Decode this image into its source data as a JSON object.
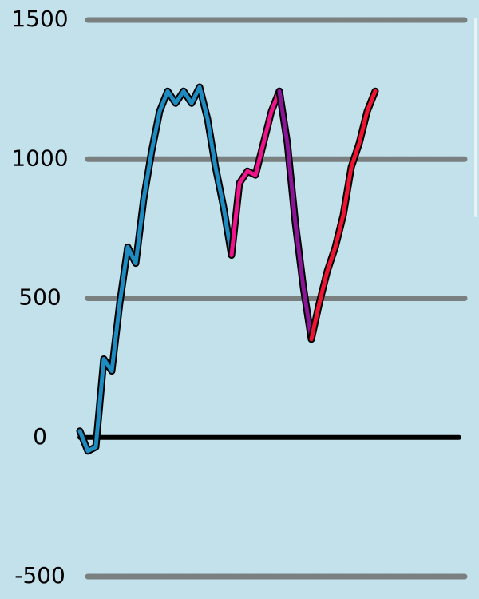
{
  "chart_data": {
    "type": "line",
    "categories": [
      null,
      null,
      null,
      null,
      null,
      null,
      null,
      null,
      null,
      null,
      null,
      null,
      null,
      null,
      null,
      null,
      null,
      null,
      null,
      null,
      null,
      null,
      null,
      null,
      null,
      null,
      null,
      null,
      null,
      null,
      null,
      null,
      null,
      null,
      null,
      null,
      null,
      null,
      null,
      null,
      null,
      null,
      null,
      null,
      null,
      null,
      null,
      null
    ],
    "series": [
      {
        "color": "#1e8cc0",
        "values": [
          23,
          -49,
          -34,
          282,
          239,
          483,
          684,
          626,
          856,
          1029,
          1172,
          1244,
          1201,
          1244,
          1201,
          1259,
          1144,
          971,
          828,
          655,
          null,
          null,
          null,
          null,
          null,
          null,
          null,
          null,
          null,
          null,
          null,
          null,
          null,
          null,
          null,
          null,
          null,
          null,
          null,
          null,
          null,
          null,
          null,
          null,
          null,
          null,
          null,
          null
        ]
      },
      {
        "color": "#f0148c",
        "values": [
          null,
          null,
          null,
          null,
          null,
          null,
          null,
          null,
          null,
          null,
          null,
          null,
          null,
          null,
          null,
          null,
          null,
          null,
          null,
          655,
          914,
          957,
          943,
          1057,
          1172,
          1244,
          null,
          null,
          null,
          null,
          null,
          null,
          null,
          null,
          null,
          null,
          null,
          null,
          null,
          null,
          null,
          null,
          null,
          null,
          null,
          null,
          null,
          null
        ]
      },
      {
        "color": "#8c1496",
        "values": [
          null,
          null,
          null,
          null,
          null,
          null,
          null,
          null,
          null,
          null,
          null,
          null,
          null,
          null,
          null,
          null,
          null,
          null,
          null,
          null,
          null,
          null,
          null,
          null,
          null,
          1244,
          1057,
          770,
          540,
          353,
          null,
          null,
          null,
          null,
          null,
          null,
          null,
          null,
          null,
          null,
          null,
          null,
          null,
          null,
          null,
          null,
          null,
          null
        ]
      },
      {
        "color": "#f01432",
        "values": [
          null,
          null,
          null,
          null,
          null,
          null,
          null,
          null,
          null,
          null,
          null,
          null,
          null,
          null,
          null,
          null,
          null,
          null,
          null,
          null,
          null,
          null,
          null,
          null,
          null,
          null,
          null,
          null,
          null,
          353,
          483,
          598,
          684,
          799,
          971,
          1057,
          1172,
          1244,
          null,
          null,
          null,
          null,
          null,
          null,
          null,
          null,
          null,
          null
        ]
      }
    ],
    "ylim": [
      -500,
      1500
    ],
    "yticks": [
      -500,
      0,
      500,
      1000,
      1500
    ],
    "grid": true,
    "grid_color": "#6e6e6e",
    "zero_line_color": "#000000"
  }
}
